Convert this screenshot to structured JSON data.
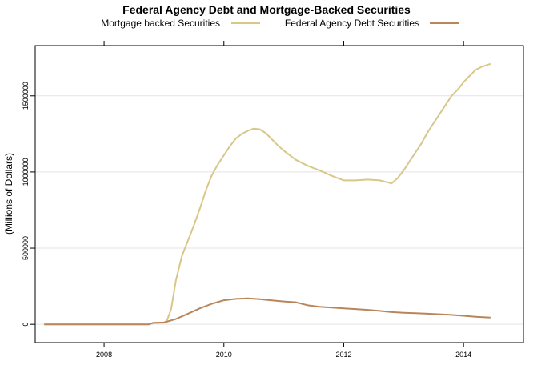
{
  "chart_data": {
    "type": "line",
    "title": "Federal Agency Debt and Mortgage-Backed Securities",
    "xlabel": "",
    "ylabel": "(Millions of Dollars)",
    "xlim": [
      2006.85,
      2015.0
    ],
    "ylim": [
      -120000,
      1830000
    ],
    "x_ticks": [
      "2008",
      "2010",
      "2012",
      "2014"
    ],
    "y_ticks": [
      "0",
      "500000",
      "1000000",
      "1500000"
    ],
    "grid": true,
    "legend_position": "top",
    "series": [
      {
        "name": "Mortgage backed Securities",
        "color": "#D8C788",
        "points": [
          [
            2007.0,
            0
          ],
          [
            2008.0,
            0
          ],
          [
            2008.75,
            0
          ],
          [
            2008.82,
            8000
          ],
          [
            2009.0,
            10000
          ],
          [
            2009.05,
            25000
          ],
          [
            2009.12,
            100000
          ],
          [
            2009.2,
            290000
          ],
          [
            2009.3,
            450000
          ],
          [
            2009.4,
            550000
          ],
          [
            2009.5,
            650000
          ],
          [
            2009.6,
            760000
          ],
          [
            2009.7,
            880000
          ],
          [
            2009.8,
            980000
          ],
          [
            2009.9,
            1050000
          ],
          [
            2010.0,
            1110000
          ],
          [
            2010.1,
            1170000
          ],
          [
            2010.2,
            1220000
          ],
          [
            2010.3,
            1250000
          ],
          [
            2010.4,
            1270000
          ],
          [
            2010.5,
            1285000
          ],
          [
            2010.6,
            1280000
          ],
          [
            2010.7,
            1255000
          ],
          [
            2010.8,
            1215000
          ],
          [
            2010.9,
            1175000
          ],
          [
            2011.0,
            1140000
          ],
          [
            2011.2,
            1080000
          ],
          [
            2011.4,
            1040000
          ],
          [
            2011.6,
            1010000
          ],
          [
            2011.8,
            975000
          ],
          [
            2012.0,
            945000
          ],
          [
            2012.2,
            945000
          ],
          [
            2012.4,
            950000
          ],
          [
            2012.6,
            945000
          ],
          [
            2012.8,
            925000
          ],
          [
            2012.9,
            960000
          ],
          [
            2013.0,
            1010000
          ],
          [
            2013.1,
            1070000
          ],
          [
            2013.2,
            1130000
          ],
          [
            2013.3,
            1190000
          ],
          [
            2013.4,
            1260000
          ],
          [
            2013.5,
            1320000
          ],
          [
            2013.6,
            1380000
          ],
          [
            2013.7,
            1440000
          ],
          [
            2013.8,
            1500000
          ],
          [
            2013.9,
            1540000
          ],
          [
            2014.0,
            1590000
          ],
          [
            2014.1,
            1630000
          ],
          [
            2014.2,
            1670000
          ],
          [
            2014.3,
            1690000
          ],
          [
            2014.45,
            1710000
          ]
        ]
      },
      {
        "name": "Federal Agency Debt Securities",
        "color": "#B8865A",
        "points": [
          [
            2007.0,
            0
          ],
          [
            2008.0,
            0
          ],
          [
            2008.75,
            0
          ],
          [
            2008.82,
            10000
          ],
          [
            2009.0,
            12000
          ],
          [
            2009.2,
            35000
          ],
          [
            2009.4,
            70000
          ],
          [
            2009.6,
            105000
          ],
          [
            2009.8,
            135000
          ],
          [
            2010.0,
            158000
          ],
          [
            2010.2,
            167000
          ],
          [
            2010.4,
            170000
          ],
          [
            2010.6,
            165000
          ],
          [
            2010.8,
            157000
          ],
          [
            2011.0,
            150000
          ],
          [
            2011.2,
            145000
          ],
          [
            2011.4,
            125000
          ],
          [
            2011.6,
            115000
          ],
          [
            2011.8,
            110000
          ],
          [
            2012.0,
            105000
          ],
          [
            2012.2,
            100000
          ],
          [
            2012.4,
            95000
          ],
          [
            2012.6,
            88000
          ],
          [
            2012.8,
            80000
          ],
          [
            2013.0,
            76000
          ],
          [
            2013.2,
            73000
          ],
          [
            2013.4,
            70000
          ],
          [
            2013.6,
            66000
          ],
          [
            2013.8,
            62000
          ],
          [
            2014.0,
            56000
          ],
          [
            2014.2,
            50000
          ],
          [
            2014.45,
            44000
          ]
        ]
      }
    ]
  }
}
